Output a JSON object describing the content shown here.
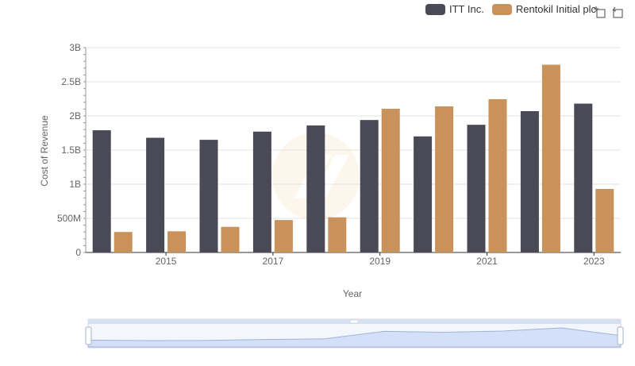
{
  "legend": [
    {
      "name": "ITT Inc.",
      "color": "#4a4a57"
    },
    {
      "name": "Rentokil Initial plc",
      "color": "#c9925a"
    }
  ],
  "toolbar": {
    "zoom_icon": "box-zoom-icon",
    "restore_icon": "restore-icon"
  },
  "chart_data": {
    "type": "bar",
    "x": [
      2014,
      2015,
      2016,
      2017,
      2018,
      2019,
      2020,
      2021,
      2022,
      2023
    ],
    "x_tick_labels": [
      "2015",
      "2017",
      "2019",
      "2021",
      "2023"
    ],
    "x_tick_values": [
      2015,
      2017,
      2019,
      2021,
      2023
    ],
    "xlabel": "Year",
    "ylabel": "Cost of Revenue",
    "ylim": [
      0,
      3000000000
    ],
    "y_tick_labels": [
      "0",
      "500M",
      "1B",
      "1.5B",
      "2B",
      "2.5B",
      "3B"
    ],
    "y_tick_values": [
      0,
      500000000,
      1000000000,
      1500000000,
      2000000000,
      2500000000,
      3000000000
    ],
    "grid": true,
    "legend_position": "top-right",
    "series": [
      {
        "name": "ITT Inc.",
        "color": "#4a4a57",
        "values": [
          1790000000,
          1680000000,
          1650000000,
          1770000000,
          1860000000,
          1940000000,
          1700000000,
          1870000000,
          2070000000,
          2180000000
        ]
      },
      {
        "name": "Rentokil Initial plc",
        "color": "#c9925a",
        "values": [
          300000000,
          310000000,
          375000000,
          475000000,
          515000000,
          2105000000,
          2140000000,
          2245000000,
          2750000000,
          930000000
        ]
      }
    ]
  }
}
